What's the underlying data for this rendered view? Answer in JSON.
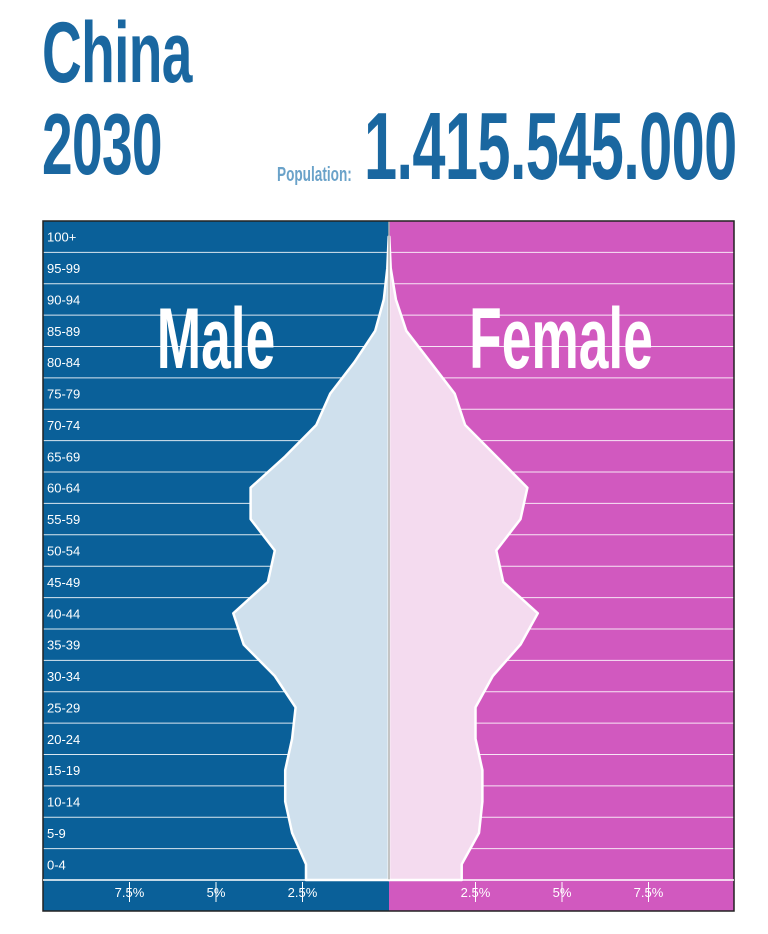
{
  "header": {
    "country": "China",
    "year": "2030",
    "population_label": "Population:",
    "population_value": "1.415.545.000"
  },
  "colors": {
    "male": "#0a6099",
    "female": "#d159bf",
    "male_fill": "#cfe0ed",
    "female_fill": "#f4dbef",
    "title": "#1a67a0"
  },
  "chart_data": {
    "type": "population-pyramid",
    "side_labels": {
      "male": "Male",
      "female": "Female"
    },
    "age_groups": [
      "0-4",
      "5-9",
      "10-14",
      "15-19",
      "20-24",
      "25-29",
      "30-34",
      "35-39",
      "40-44",
      "45-49",
      "50-54",
      "55-59",
      "60-64",
      "65-69",
      "70-74",
      "75-79",
      "80-84",
      "85-89",
      "90-94",
      "95-99",
      "100+"
    ],
    "male": [
      2.4,
      2.8,
      3.0,
      3.0,
      2.8,
      2.7,
      3.3,
      4.2,
      4.5,
      3.5,
      3.3,
      4.0,
      4.0,
      3.0,
      2.1,
      1.7,
      1.0,
      0.4,
      0.15,
      0.05,
      0.01
    ],
    "female": [
      2.1,
      2.6,
      2.7,
      2.7,
      2.5,
      2.5,
      3.0,
      3.8,
      4.3,
      3.3,
      3.1,
      3.8,
      4.0,
      3.1,
      2.2,
      1.9,
      1.2,
      0.5,
      0.2,
      0.05,
      0.01
    ],
    "x_ticks": [
      {
        "value": 7.5,
        "label": "7.5%"
      },
      {
        "value": 5,
        "label": "5%"
      },
      {
        "value": 2.5,
        "label": "2.5%"
      }
    ],
    "xlim": [
      0,
      10
    ],
    "unit": "%"
  }
}
